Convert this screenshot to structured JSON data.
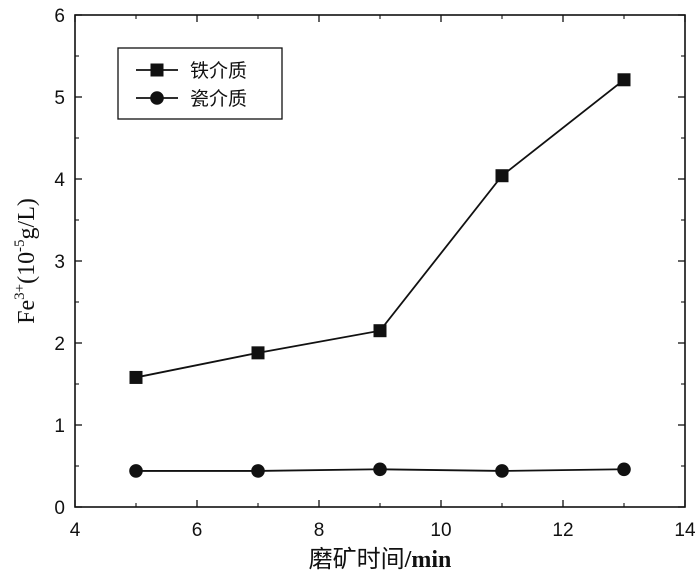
{
  "chart_data": {
    "type": "line",
    "xlabel_text": "磨矿时间",
    "xlabel_unit": "/min",
    "ylabel": {
      "base": "Fe",
      "sup": "3+",
      "mid": "(10",
      "exp": "-5",
      "tail": "g/L)"
    },
    "xlim": [
      4,
      14
    ],
    "ylim": [
      0,
      6
    ],
    "xticks": [
      4,
      6,
      8,
      10,
      12,
      14
    ],
    "yticks": [
      0,
      1,
      2,
      3,
      4,
      5,
      6
    ],
    "grid": false,
    "legend_position": "top-left",
    "series": [
      {
        "name": "铁介质",
        "marker": "square",
        "x": [
          5,
          7,
          9,
          11,
          13
        ],
        "y": [
          1.58,
          1.88,
          2.15,
          4.04,
          5.21
        ]
      },
      {
        "name": "瓷介质",
        "marker": "circle",
        "x": [
          5,
          7,
          9,
          11,
          13
        ],
        "y": [
          0.44,
          0.44,
          0.46,
          0.44,
          0.46
        ]
      }
    ]
  }
}
